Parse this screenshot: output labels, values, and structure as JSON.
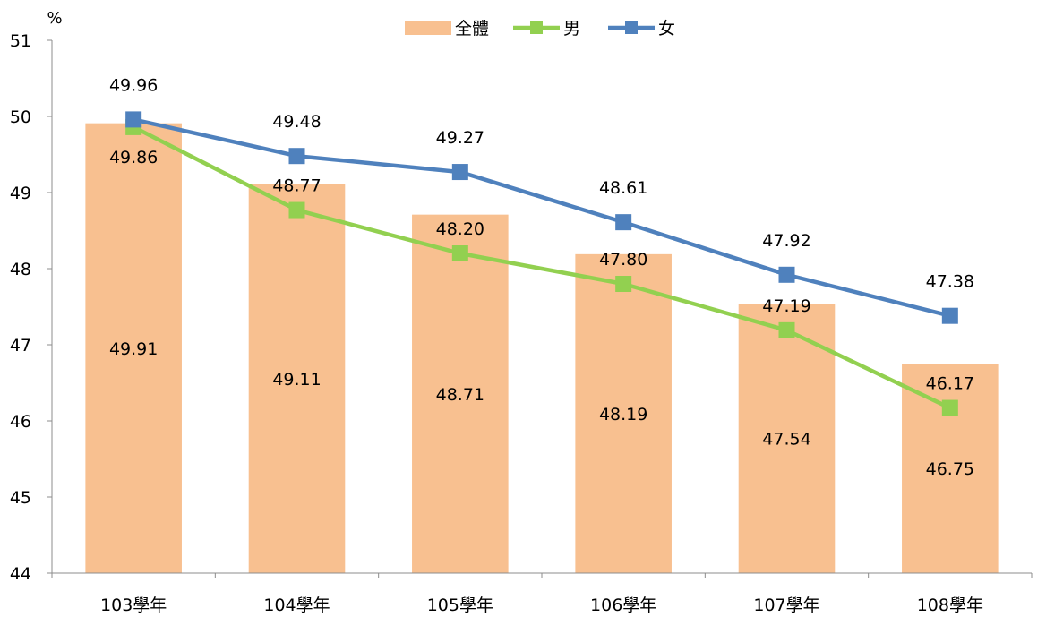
{
  "chart_data": {
    "type": "bar",
    "title": "",
    "xlabel": "",
    "ylabel": "%",
    "ylim": [
      44,
      51
    ],
    "yticks": [
      44,
      45,
      46,
      47,
      48,
      49,
      50,
      51
    ],
    "grid": false,
    "legend_position": "top-center",
    "categories": [
      "103學年",
      "104學年",
      "105學年",
      "106學年",
      "107學年",
      "108學年"
    ],
    "series": [
      {
        "name": "全體",
        "type": "bar",
        "color": "#F8C090",
        "values": [
          49.91,
          49.11,
          48.71,
          48.19,
          47.54,
          46.75
        ],
        "labels": [
          "49.91",
          "49.11",
          "48.71",
          "48.19",
          "47.54",
          "46.75"
        ]
      },
      {
        "name": "男",
        "type": "line",
        "marker": "square",
        "color": "#92D050",
        "values": [
          49.86,
          48.77,
          48.2,
          47.8,
          47.19,
          46.17
        ],
        "labels": [
          "49.86",
          "48.77",
          "48.20",
          "47.80",
          "47.19",
          "46.17"
        ]
      },
      {
        "name": "女",
        "type": "line",
        "marker": "square",
        "color": "#4F81BD",
        "values": [
          49.96,
          49.48,
          49.27,
          48.61,
          47.92,
          47.38
        ],
        "labels": [
          "49.96",
          "49.48",
          "49.27",
          "48.61",
          "47.92",
          "47.38"
        ]
      }
    ]
  }
}
